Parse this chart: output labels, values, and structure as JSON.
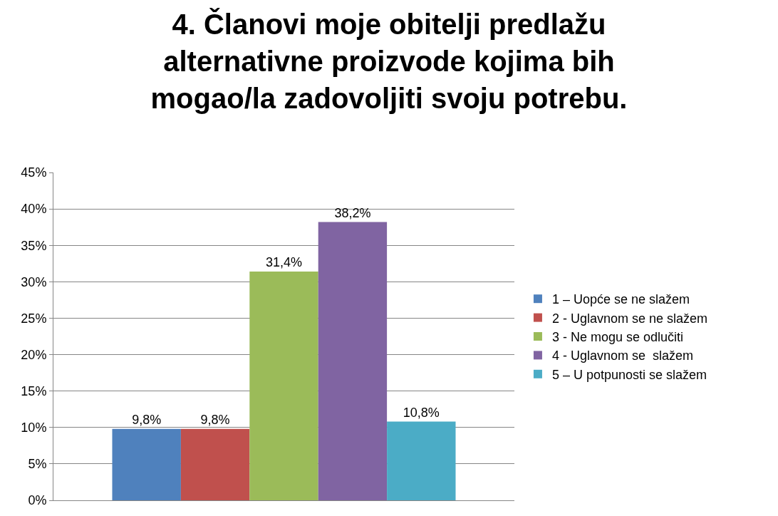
{
  "chart_data": {
    "type": "bar",
    "title": "4. Članovi moje obitelji predlažu\nalternativne proizvode kojima bih\nmogao/la zadovoljiti svoju potrebu.",
    "categories": [
      null
    ],
    "series": [
      {
        "name": "1 – Uopće se ne slažem",
        "color": "#4f81bd",
        "values": [
          9.8
        ],
        "value_labels": [
          "9,8%"
        ]
      },
      {
        "name": "2 - Uglavnom se ne slažem",
        "color": "#c0504d",
        "values": [
          9.8
        ],
        "value_labels": [
          "9,8%"
        ]
      },
      {
        "name": "3 - Ne mogu se odlučiti",
        "color": "#9bbb59",
        "values": [
          31.4
        ],
        "value_labels": [
          "31,4%"
        ]
      },
      {
        "name": "4 - Uglavnom se  slažem",
        "color": "#8064a2",
        "values": [
          38.2
        ],
        "value_labels": [
          "38,2%"
        ]
      },
      {
        "name": "5 – U potpunosti se slažem",
        "color": "#4bacc6",
        "values": [
          10.8
        ],
        "value_labels": [
          "10,8%"
        ]
      }
    ],
    "ylim": [
      0,
      45
    ],
    "yticks": [
      {
        "value": 0,
        "label": "0%"
      },
      {
        "value": 5,
        "label": "5%"
      },
      {
        "value": 10,
        "label": "10%"
      },
      {
        "value": 15,
        "label": "15%"
      },
      {
        "value": 20,
        "label": "20%"
      },
      {
        "value": 25,
        "label": "25%"
      },
      {
        "value": 30,
        "label": "30%"
      },
      {
        "value": 35,
        "label": "35%"
      },
      {
        "value": 40,
        "label": "40%"
      },
      {
        "value": 45,
        "label": "45%"
      }
    ],
    "grid": "y",
    "legend": "right"
  }
}
